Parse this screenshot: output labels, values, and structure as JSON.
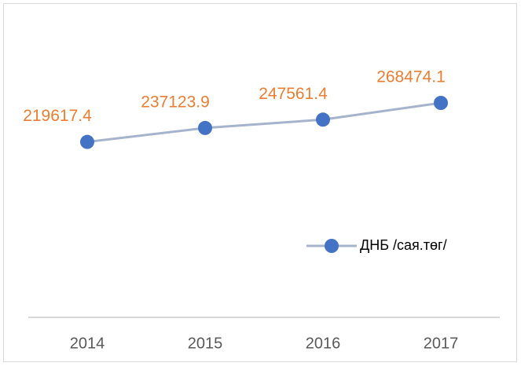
{
  "chart_data": {
    "type": "line",
    "categories": [
      "2014",
      "2015",
      "2016",
      "2017"
    ],
    "series": [
      {
        "name": "ДНБ /сая.төг/",
        "color": "#4472c4",
        "line_color": "#a5b4cc",
        "label_color": "#ed7d31",
        "values": [
          219617.4,
          237123.9,
          247561.4,
          268474.1
        ]
      }
    ],
    "legend": "right"
  }
}
